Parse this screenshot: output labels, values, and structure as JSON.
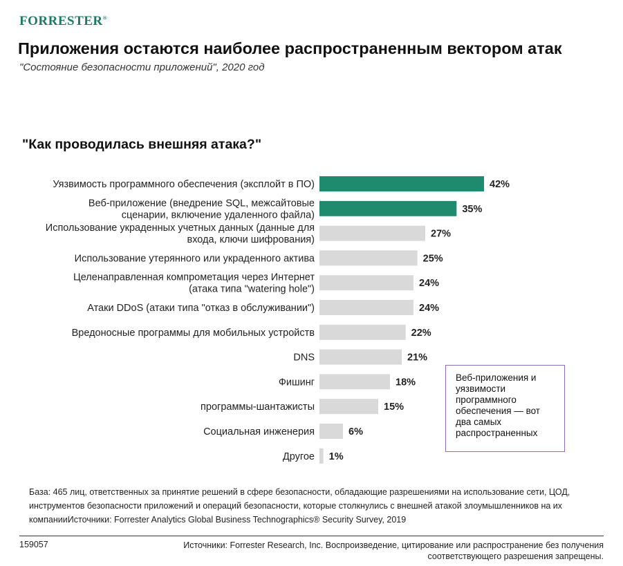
{
  "header": {
    "logo": "Forrester",
    "logo_mark": "®",
    "title": "Приложения остаются наиболее распространенным вектором атак",
    "subtitle": "\"Состояние безопасности приложений\", 2020 год"
  },
  "chart_data": {
    "type": "bar",
    "orientation": "horizontal",
    "title": "\"Как проводилась внешняя атака?\"",
    "categories": [
      [
        "Уязвимость программного обеспечения (эксплойт в ПО)"
      ],
      [
        "Веб-приложение (внедрение SQL, межсайтовые",
        "сценарии, включение удаленного файла)"
      ],
      [
        "Использование украденных учетных данных (данные для",
        "входа, ключи шифрования)"
      ],
      [
        "Использование утерянного или украденного актива"
      ],
      [
        "Целенаправленная компрометация через Интернет",
        "(атака типа \"watering hole\")"
      ],
      [
        "Атаки DDoS (атаки типа \"отказ в обслуживании\")"
      ],
      [
        "Вредоносные программы для мобильных устройств"
      ],
      [
        "DNS"
      ],
      [
        "Фишинг"
      ],
      [
        "программы-шантажисты"
      ],
      [
        "Социальная инженерия"
      ],
      [
        "Другое"
      ]
    ],
    "values": [
      42,
      35,
      27,
      25,
      24,
      24,
      22,
      21,
      18,
      15,
      6,
      1
    ],
    "value_labels": [
      "42%",
      "35%",
      "27%",
      "25%",
      "24%",
      "24%",
      "22%",
      "21%",
      "18%",
      "15%",
      "6%",
      "1%"
    ],
    "highlighted": [
      true,
      true,
      false,
      false,
      false,
      false,
      false,
      false,
      false,
      false,
      false,
      false
    ],
    "colors": {
      "highlight": "#1e8a6e",
      "default": "#d9d9d9"
    },
    "xlim": [
      0,
      42
    ],
    "grid": false,
    "legend": "none"
  },
  "callout": {
    "text": "Веб-приложения и уязвимости программного обеспечения — вот два самых распространенных",
    "border_color": "#8a6bbd"
  },
  "footer": {
    "base_note": "База: 465 лиц, ответственных за принятие решений в сфере безопасности, обладающие разрешениями на использование сети, ЦОД, инструментов безопасности приложений и операций безопасности, которые столкнулись с внешней атакой злоумышленников на их компанииИсточники: Forrester Analytics Global Business Technographics® Security Survey, 2019",
    "doc_id": "159057",
    "copyright": "Источники: Forrester Research, Inc. Воспроизведение, цитирование или распространение без получения соответствующего разрешения запрещены."
  }
}
